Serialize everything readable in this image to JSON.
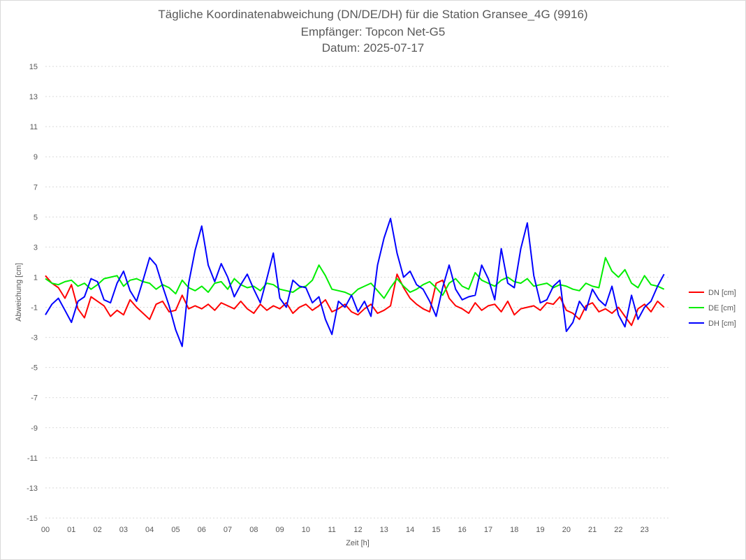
{
  "chart_data": {
    "type": "line",
    "title": "Tägliche Koordinatenabweichung (DN/DE/DH) für die Station Gransee_4G (9916)",
    "subtitle": "Empfänger: Topcon Net-G5",
    "date_line": "Datum: 2025-07-17",
    "xlabel": "Zeit [h]",
    "ylabel": "Abweichung [cm]",
    "x_ticks": [
      "00",
      "01",
      "02",
      "03",
      "04",
      "05",
      "06",
      "07",
      "08",
      "09",
      "10",
      "11",
      "12",
      "13",
      "14",
      "15",
      "16",
      "17",
      "18",
      "19",
      "20",
      "21",
      "22",
      "23"
    ],
    "y_ticks": [
      15,
      13,
      11,
      9,
      7,
      5,
      3,
      1,
      -1,
      -3,
      -5,
      -7,
      -9,
      -11,
      -13,
      -15
    ],
    "ylim": [
      -15,
      15
    ],
    "xlim": [
      0,
      24
    ],
    "grid": "horizontal dotted",
    "legend_position": "right",
    "x": [
      0,
      0.25,
      0.5,
      0.75,
      1,
      1.25,
      1.5,
      1.75,
      2,
      2.25,
      2.5,
      2.75,
      3,
      3.25,
      3.5,
      3.75,
      4,
      4.25,
      4.5,
      4.75,
      5,
      5.25,
      5.5,
      5.75,
      6,
      6.25,
      6.5,
      6.75,
      7,
      7.25,
      7.5,
      7.75,
      8,
      8.25,
      8.5,
      8.75,
      9,
      9.25,
      9.5,
      9.75,
      10,
      10.25,
      10.5,
      10.75,
      11,
      11.25,
      11.5,
      11.75,
      12,
      12.25,
      12.5,
      12.75,
      13,
      13.25,
      13.5,
      13.75,
      14,
      14.25,
      14.5,
      14.75,
      15,
      15.25,
      15.5,
      15.75,
      16,
      16.25,
      16.5,
      16.75,
      17,
      17.25,
      17.5,
      17.75,
      18,
      18.25,
      18.5,
      18.75,
      19,
      19.25,
      19.5,
      19.75,
      20,
      20.25,
      20.5,
      20.75,
      21,
      21.25,
      21.5,
      21.75,
      22,
      22.25,
      22.5,
      22.75,
      23,
      23.25,
      23.5,
      23.75
    ],
    "series": [
      {
        "name": "DN [cm]",
        "color": "#ff0000",
        "values": [
          1.1,
          0.6,
          0.3,
          -0.4,
          0.5,
          -1.1,
          -1.7,
          -0.3,
          -0.6,
          -0.9,
          -1.6,
          -1.2,
          -1.5,
          -0.5,
          -1.0,
          -1.4,
          -1.8,
          -0.8,
          -0.6,
          -1.3,
          -1.2,
          -0.2,
          -1.1,
          -0.9,
          -1.1,
          -0.8,
          -1.2,
          -0.7,
          -0.9,
          -1.1,
          -0.6,
          -1.1,
          -1.4,
          -0.8,
          -1.2,
          -0.9,
          -1.1,
          -0.7,
          -1.4,
          -1.0,
          -0.8,
          -1.2,
          -0.9,
          -0.5,
          -1.3,
          -1.1,
          -0.8,
          -1.3,
          -1.5,
          -1.1,
          -0.8,
          -1.4,
          -1.2,
          -0.9,
          1.2,
          0.3,
          -0.4,
          -0.8,
          -1.1,
          -1.3,
          0.6,
          0.8,
          -0.4,
          -0.9,
          -1.1,
          -1.4,
          -0.7,
          -1.2,
          -0.9,
          -0.8,
          -1.3,
          -0.6,
          -1.5,
          -1.1,
          -1.0,
          -0.9,
          -1.2,
          -0.7,
          -0.8,
          -0.3,
          -1.2,
          -1.4,
          -1.8,
          -0.9,
          -0.7,
          -1.3,
          -1.1,
          -1.4,
          -1.0,
          -1.6,
          -2.2,
          -1.1,
          -0.8,
          -1.3,
          -0.6,
          -1.0
        ]
      },
      {
        "name": "DE [cm]",
        "color": "#00ee00",
        "values": [
          0.9,
          0.6,
          0.5,
          0.7,
          0.8,
          0.4,
          0.6,
          0.2,
          0.5,
          0.9,
          1.0,
          1.1,
          0.4,
          0.8,
          0.9,
          0.7,
          0.6,
          0.2,
          0.5,
          0.3,
          -0.1,
          0.8,
          0.3,
          0.1,
          0.4,
          0.0,
          0.6,
          0.7,
          0.2,
          0.9,
          0.5,
          0.3,
          0.4,
          0.1,
          0.6,
          0.5,
          0.2,
          0.1,
          0.0,
          0.3,
          0.4,
          0.8,
          1.8,
          1.1,
          0.2,
          0.1,
          0.0,
          -0.2,
          0.2,
          0.4,
          0.6,
          0.1,
          -0.4,
          0.3,
          0.9,
          0.4,
          0.0,
          0.2,
          0.5,
          0.7,
          0.3,
          -0.2,
          0.6,
          0.9,
          0.4,
          0.2,
          1.3,
          0.8,
          0.6,
          0.4,
          0.8,
          1.0,
          0.7,
          0.6,
          0.9,
          0.4,
          0.5,
          0.6,
          0.3,
          0.5,
          0.4,
          0.2,
          0.1,
          0.6,
          0.4,
          0.3,
          2.3,
          1.4,
          1.0,
          1.5,
          0.6,
          0.3,
          1.1,
          0.5,
          0.4,
          0.2
        ]
      },
      {
        "name": "DH [cm]",
        "color": "#0000ff",
        "values": [
          -1.5,
          -0.8,
          -0.4,
          -1.2,
          -2.0,
          -0.6,
          -0.3,
          0.9,
          0.7,
          -0.5,
          -0.7,
          0.6,
          1.4,
          0.1,
          -0.6,
          0.8,
          2.3,
          1.8,
          0.4,
          -0.9,
          -2.5,
          -3.6,
          0.6,
          2.8,
          4.4,
          1.8,
          0.7,
          1.9,
          1.0,
          -0.3,
          0.5,
          1.2,
          0.2,
          -0.7,
          0.9,
          2.6,
          -0.4,
          -1.0,
          0.8,
          0.4,
          0.3,
          -0.7,
          -0.3,
          -1.8,
          -2.8,
          -0.6,
          -1.0,
          -0.2,
          -1.3,
          -0.6,
          -1.6,
          1.8,
          3.6,
          4.9,
          2.6,
          1.0,
          1.4,
          0.5,
          0.2,
          -0.6,
          -1.6,
          0.3,
          1.8,
          0.2,
          -0.5,
          -0.3,
          -0.2,
          1.8,
          0.9,
          -0.5,
          2.9,
          0.6,
          0.3,
          2.9,
          4.6,
          1.1,
          -0.7,
          -0.5,
          0.4,
          0.8,
          -2.6,
          -2.0,
          -0.6,
          -1.2,
          0.2,
          -0.5,
          -0.9,
          0.4,
          -1.5,
          -2.3,
          -0.2,
          -1.8,
          -1.0,
          -0.6,
          0.4,
          1.2
        ]
      }
    ]
  }
}
